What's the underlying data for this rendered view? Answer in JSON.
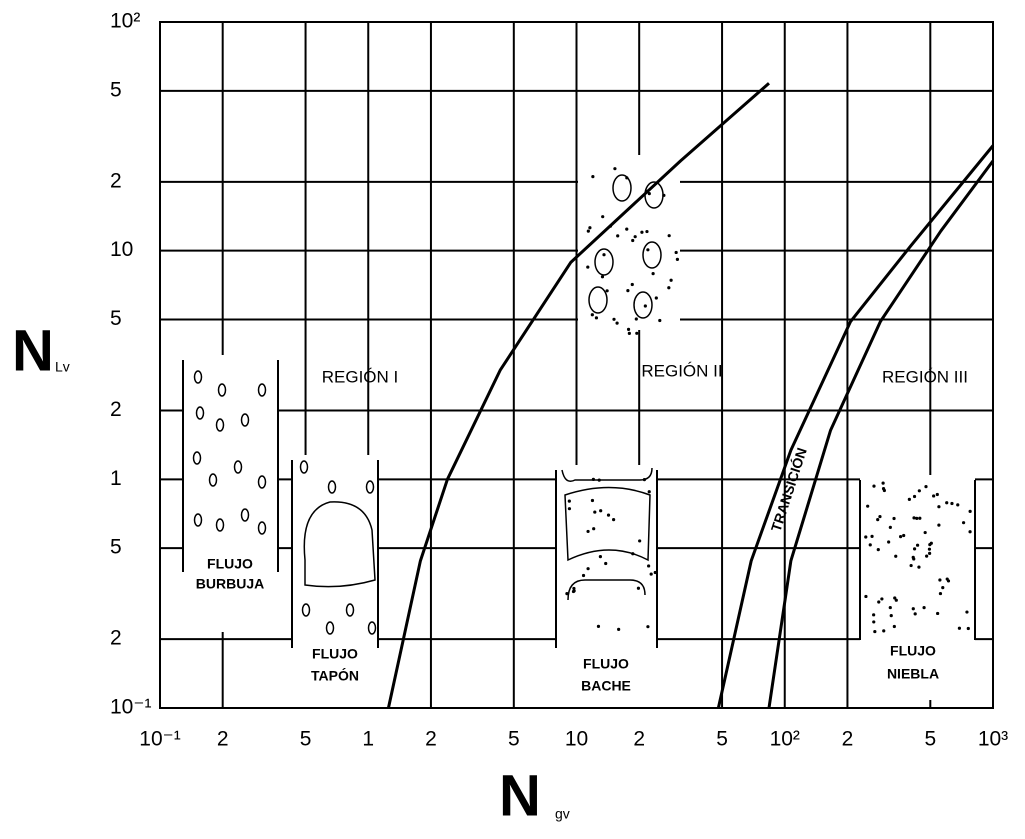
{
  "chart_data": {
    "type": "line",
    "xscale": "log",
    "yscale": "log",
    "grid": true,
    "xlabel": "N",
    "xlabel_sub": "gv",
    "ylabel": "N",
    "ylabel_sub": "Lv",
    "xlim": [
      0.1,
      1000
    ],
    "ylim": [
      0.1,
      100
    ],
    "xticks": [
      {
        "value": 0.1,
        "label": "10⁻¹"
      },
      {
        "value": 0.2,
        "label": "2"
      },
      {
        "value": 0.5,
        "label": "5"
      },
      1,
      2,
      5,
      10,
      {
        "value": 20,
        "label": "2"
      },
      {
        "value": 50,
        "label": "5"
      },
      {
        "value": 100,
        "label": "10²"
      },
      {
        "value": 200,
        "label": "2"
      },
      {
        "value": 500,
        "label": "5"
      },
      {
        "value": 1000,
        "label": "10³"
      }
    ],
    "yticks": [
      {
        "value": 0.1,
        "label": "10⁻¹"
      },
      {
        "value": 0.2,
        "label": "2"
      },
      {
        "value": 0.5,
        "label": "5"
      },
      1,
      2,
      5,
      10,
      {
        "value": 20,
        "label": "2"
      },
      {
        "value": 50,
        "label": "5"
      },
      {
        "value": 100,
        "label": "10²"
      }
    ],
    "series": [
      {
        "color": "#000000",
        "x": [
          1.25,
          1.78,
          2.4,
          4.3,
          9.4,
          31.6,
          84
        ],
        "values": [
          0.1,
          0.44,
          1.0,
          3.0,
          8.9,
          24.7,
          54
        ]
      },
      {
        "color": "#000000",
        "x": [
          48,
          69,
          107,
          207,
          403,
          1000
        ],
        "values": [
          0.1,
          0.44,
          1.34,
          4.9,
          10.5,
          28.8
        ]
      },
      {
        "color": "#000000",
        "x": [
          84,
          107,
          166,
          288,
          562,
          1000
        ],
        "values": [
          0.1,
          0.44,
          1.64,
          4.9,
          12.2,
          24.7
        ]
      }
    ],
    "annotations": [
      "REGIÓN I",
      "REGIÓN II",
      "REGIÓN III",
      "TRANSICIÓN",
      "FLUJO",
      "BURBUJA",
      "FLUJO",
      "TAPÓN",
      "FLUJO",
      "BACHE",
      "FLUJO",
      "NIEBLA"
    ]
  }
}
